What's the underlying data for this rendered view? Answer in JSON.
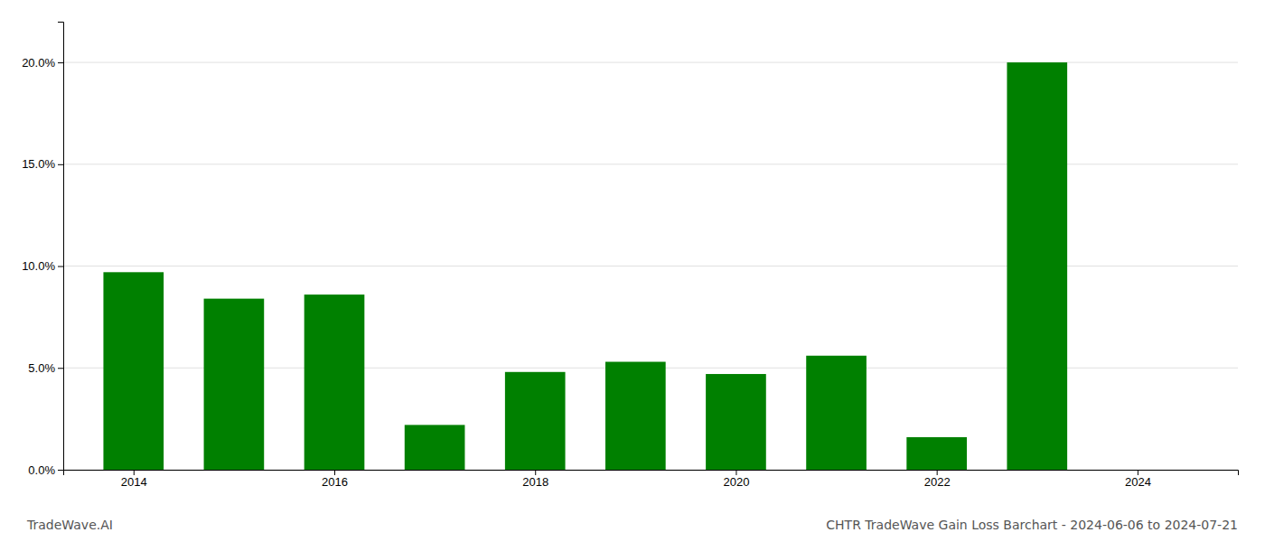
{
  "chart_data": {
    "type": "bar",
    "title": "CHTR TradeWave Gain Loss Barchart - 2024-06-06 to 2024-07-21",
    "annotations": [
      "TradeWave.AI"
    ],
    "x": [
      2014,
      2015,
      2016,
      2017,
      2018,
      2019,
      2020,
      2021,
      2022,
      2023,
      2024
    ],
    "values": [
      0.097,
      0.084,
      0.086,
      0.022,
      0.048,
      0.053,
      0.047,
      0.056,
      0.016,
      0.2,
      0.0
    ],
    "color": "#008000",
    "xlim": [
      2013.3,
      2025.0
    ],
    "xticks": [
      2014,
      2016,
      2018,
      2020,
      2022,
      2024
    ],
    "ylim": [
      0,
      0.22
    ],
    "yticks": [
      {
        "value": 0.0,
        "label": "0.0%"
      },
      {
        "value": 0.05,
        "label": "5.0%"
      },
      {
        "value": 0.1,
        "label": "10.0%"
      },
      {
        "value": 0.15,
        "label": "15.0%"
      },
      {
        "value": 0.2,
        "label": "20.0%"
      }
    ],
    "grid": true
  }
}
